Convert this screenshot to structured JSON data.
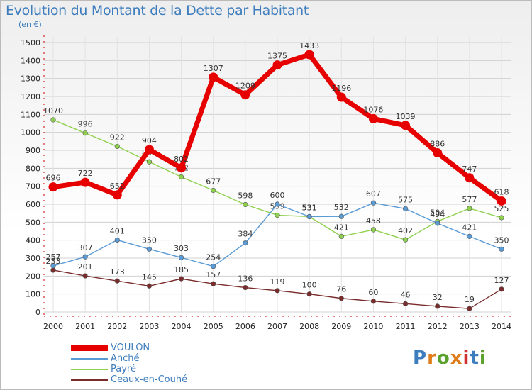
{
  "title": "Evolution du Montant de la Dette par Habitant",
  "subtitle": "(en €)",
  "logo": "Proxiti",
  "colors": {
    "title": "#3e7dbd",
    "grid": "#d0d0d0",
    "axis": "#cc0000"
  },
  "chart_data": {
    "type": "line",
    "title": "Evolution du Montant de la Dette par Habitant",
    "ylabel": "(en €)",
    "xlabel": "",
    "ylim": [
      0,
      1500
    ],
    "yticks": [
      0,
      100,
      200,
      300,
      400,
      500,
      600,
      700,
      800,
      900,
      1000,
      1100,
      1200,
      1300,
      1400,
      1500
    ],
    "x": [
      "2000",
      "2001",
      "2002",
      "2003",
      "2004",
      "2005",
      "2006",
      "2007",
      "2008",
      "2009",
      "2010",
      "2011",
      "2012",
      "2013",
      "2014"
    ],
    "grid": true,
    "legend_position": "bottom-left",
    "series": [
      {
        "name": "Ceaux-en-Couhé",
        "color": "#7a2b2b",
        "values": [
          233,
          201,
          173,
          145,
          185,
          157,
          136,
          119,
          100,
          76,
          60,
          46,
          32,
          19,
          127
        ]
      },
      {
        "name": "Payré",
        "color": "#8fd14f",
        "values": [
          1070,
          996,
          922,
          836,
          752,
          677,
          598,
          539,
          531,
          421,
          458,
          402,
          504,
          577,
          525
        ]
      },
      {
        "name": "Anché",
        "color": "#5b9bd5",
        "values": [
          257,
          307,
          401,
          350,
          303,
          254,
          384,
          600,
          531,
          532,
          607,
          575,
          494,
          421,
          350
        ]
      },
      {
        "name": "VOULON",
        "color": "#e60000",
        "values": [
          696,
          722,
          652,
          904,
          802,
          1307,
          1209,
          1375,
          1433,
          1196,
          1076,
          1039,
          886,
          747,
          618
        ]
      }
    ]
  },
  "legend": [
    {
      "name": "VOULON",
      "color": "#e60000"
    },
    {
      "name": "Anché",
      "color": "#5b9bd5"
    },
    {
      "name": "Payré",
      "color": "#8fd14f"
    },
    {
      "name": "Ceaux-en-Couhé",
      "color": "#7a2b2b"
    }
  ]
}
